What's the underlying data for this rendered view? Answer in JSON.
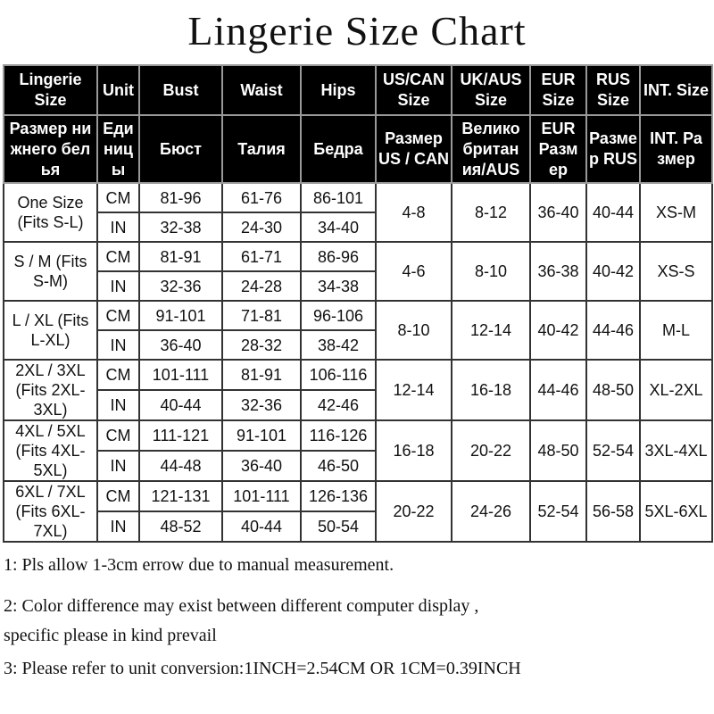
{
  "title": "Lingerie  Size  Chart",
  "table": {
    "header_en": [
      "Lingerie Size",
      "Unit",
      "Bust",
      "Waist",
      "Hips",
      "US/CAN Size",
      "UK/AUS Size",
      "EUR Size",
      "RUS Size",
      "INT. Size"
    ],
    "header_ru": [
      "Размер ни жнего бел ья",
      "Еди ниц ы",
      "Бюст",
      "Талия",
      "Бедра",
      "Размер US / CAN",
      "Велико британ ия/AUS",
      "EUR Разм ер",
      "Разме р RUS",
      "INT. Ра змер"
    ],
    "rows": [
      {
        "size": "One Size (Fits S-L)",
        "cm": [
          "81-96",
          "61-76",
          "86-101"
        ],
        "in": [
          "32-38",
          "24-30",
          "34-40"
        ],
        "us": "4-8",
        "uk": "8-12",
        "eur": "36-40",
        "rus": "40-44",
        "int": "XS-M"
      },
      {
        "size": "S / M (Fits S-M)",
        "cm": [
          "81-91",
          "61-71",
          "86-96"
        ],
        "in": [
          "32-36",
          "24-28",
          "34-38"
        ],
        "us": "4-6",
        "uk": "8-10",
        "eur": "36-38",
        "rus": "40-42",
        "int": "XS-S"
      },
      {
        "size": "L / XL (Fits L-XL)",
        "cm": [
          "91-101",
          "71-81",
          "96-106"
        ],
        "in": [
          "36-40",
          "28-32",
          "38-42"
        ],
        "us": "8-10",
        "uk": "12-14",
        "eur": "40-42",
        "rus": "44-46",
        "int": "M-L"
      },
      {
        "size": "2XL / 3XL (Fits 2XL-3XL)",
        "cm": [
          "101-111",
          "81-91",
          "106-116"
        ],
        "in": [
          "40-44",
          "32-36",
          "42-46"
        ],
        "us": "12-14",
        "uk": "16-18",
        "eur": "44-46",
        "rus": "48-50",
        "int": "XL-2XL"
      },
      {
        "size": "4XL / 5XL (Fits 4XL-5XL)",
        "cm": [
          "111-121",
          "91-101",
          "116-126"
        ],
        "in": [
          "44-48",
          "36-40",
          "46-50"
        ],
        "us": "16-18",
        "uk": "20-22",
        "eur": "48-50",
        "rus": "52-54",
        "int": "3XL-4XL"
      },
      {
        "size": "6XL / 7XL (Fits 6XL-7XL)",
        "cm": [
          "121-131",
          "101-111",
          "126-136"
        ],
        "in": [
          "48-52",
          "40-44",
          "50-54"
        ],
        "us": "20-22",
        "uk": "24-26",
        "eur": "52-54",
        "rus": "56-58",
        "int": "5XL-6XL"
      }
    ],
    "unit_cm": "CM",
    "unit_in": "IN"
  },
  "notes": [
    "1:  Pls allow 1-3cm errow due to manual measurement.",
    "2: Color difference may exist between different computer display ,",
    "specific please in kind prevail",
    "3: Please refer to unit conversion:1INCH=2.54CM OR 1CM=0.39INCH"
  ]
}
